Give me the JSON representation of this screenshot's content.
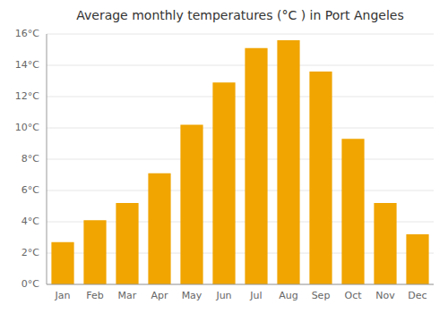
{
  "chart_data": {
    "type": "bar",
    "title": "Average monthly temperatures (°C ) in Port Angeles",
    "categories": [
      "Jan",
      "Feb",
      "Mar",
      "Apr",
      "May",
      "Jun",
      "Jul",
      "Aug",
      "Sep",
      "Oct",
      "Nov",
      "Dec"
    ],
    "values": [
      2.7,
      4.1,
      5.2,
      7.1,
      10.2,
      12.9,
      15.1,
      15.6,
      13.6,
      9.3,
      5.2,
      3.2
    ],
    "color": "#F0A500",
    "ylim": [
      0,
      16
    ],
    "yticks": [
      {
        "value": 0,
        "label": "0°C"
      },
      {
        "value": 2,
        "label": "2°C"
      },
      {
        "value": 4,
        "label": "4°C"
      },
      {
        "value": 6,
        "label": "6°C"
      },
      {
        "value": 8,
        "label": "8°C"
      },
      {
        "value": 10,
        "label": "10°C"
      },
      {
        "value": 12,
        "label": "12°C"
      },
      {
        "value": 14,
        "label": "14°C"
      },
      {
        "value": 16,
        "label": "16°C"
      }
    ],
    "grid": true
  }
}
